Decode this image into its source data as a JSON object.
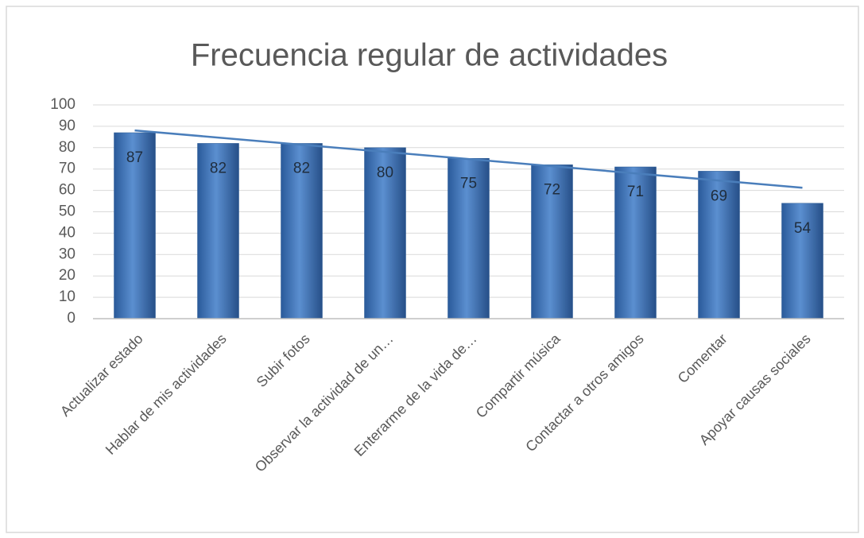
{
  "chart_data": {
    "type": "bar",
    "title": "Frecuencia regular de actividades",
    "categories": [
      "Actualizar estado",
      "Hablar de mis actividades",
      "Subir fotos",
      "Observar la actividad de un…",
      "Enterarme de la vida de…",
      "Compartir música",
      "Contactar a otros amigos",
      "Comentar",
      "Apoyar causas sociales"
    ],
    "values": [
      87,
      82,
      82,
      80,
      75,
      72,
      71,
      69,
      54
    ],
    "color": "#4f81bd",
    "trendline": "linear",
    "trendline_color": "#4a7ebb",
    "ylim": [
      0,
      100
    ],
    "yticks": [
      0,
      10,
      20,
      30,
      40,
      50,
      60,
      70,
      80,
      90,
      100
    ],
    "grid": true
  }
}
